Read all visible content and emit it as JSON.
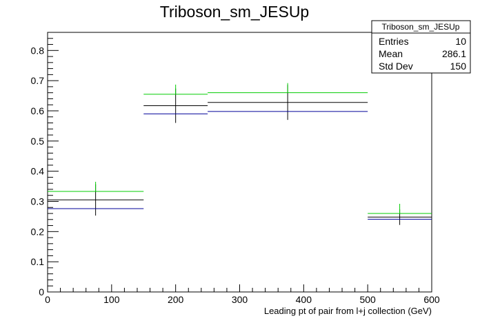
{
  "chart_data": {
    "type": "histogram",
    "title": "Triboson_sm_JESUp",
    "xlabel": "Leading pt of pair from l+j collection (GeV)",
    "ylabel": "",
    "xlim": [
      0,
      600
    ],
    "ylim": [
      0,
      0.86
    ],
    "x_ticks": [
      0,
      100,
      200,
      300,
      400,
      500,
      600
    ],
    "y_ticks": [
      0,
      0.1,
      0.2,
      0.3,
      0.4,
      0.5,
      0.6,
      0.7,
      0.8
    ],
    "grid": false,
    "bins": [
      {
        "low": 0,
        "high": 150,
        "center": 75
      },
      {
        "low": 150,
        "high": 250,
        "center": 200
      },
      {
        "low": 250,
        "high": 500,
        "center": 375
      },
      {
        "low": 500,
        "high": 600,
        "center": 550
      }
    ],
    "series": [
      {
        "color": "#000000",
        "values": [
          0.305,
          0.617,
          0.628,
          0.248
        ],
        "errors": [
          0.052,
          0.057,
          0.058,
          0.026
        ]
      },
      {
        "color": "#00cc00",
        "values": [
          0.333,
          0.655,
          0.66,
          0.26
        ]
      },
      {
        "color": "#000099",
        "values": [
          0.276,
          0.59,
          0.598,
          0.241
        ]
      }
    ],
    "stats_box": {
      "title": "Triboson_sm_JESUp",
      "rows": [
        {
          "label": "Entries",
          "value": "10"
        },
        {
          "label": "Mean",
          "value": "286.1"
        },
        {
          "label": "Std Dev",
          "value": "150"
        }
      ]
    }
  }
}
